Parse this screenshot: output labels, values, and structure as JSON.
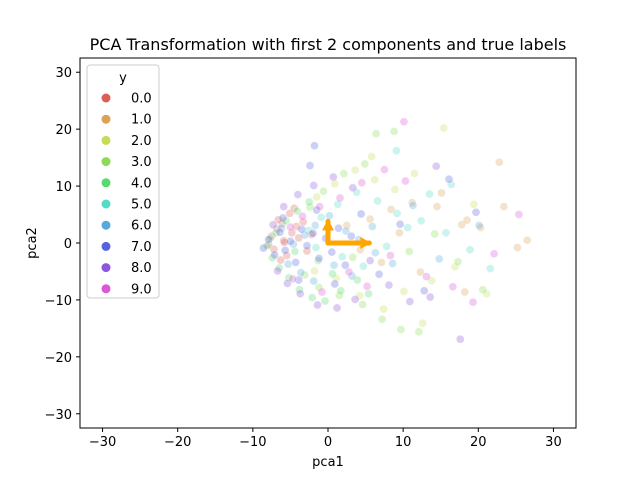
{
  "chart_data": {
    "type": "scatter",
    "title": "PCA Transformation with first 2 components and true labels",
    "xlabel": "pca1",
    "ylabel": "pca2",
    "xlim": [
      -33,
      33
    ],
    "ylim": [
      -32.5,
      32.5
    ],
    "xticks": [
      -30,
      -20,
      -10,
      0,
      10,
      20,
      30
    ],
    "xtick_labels": [
      "−30",
      "−20",
      "−10",
      "0",
      "10",
      "20",
      "30"
    ],
    "yticks": [
      -30,
      -20,
      -10,
      0,
      10,
      20,
      30
    ],
    "ytick_labels": [
      "−30",
      "−20",
      "−10",
      "0",
      "10",
      "20",
      "30"
    ],
    "grid": false,
    "legend": {
      "title": "y",
      "placement": "top-left",
      "entries": [
        "0.0",
        "1.0",
        "2.0",
        "3.0",
        "4.0",
        "5.0",
        "6.0",
        "7.0",
        "8.0",
        "9.0"
      ]
    },
    "series_colors": [
      "#db5f57",
      "#dba157",
      "#c8db57",
      "#8adb57",
      "#57db6c",
      "#57dbc8",
      "#57a9db",
      "#5763db",
      "#8c57db",
      "#db57d6"
    ],
    "point_alpha": 0.3,
    "series": [
      {
        "name": "0.0",
        "points": [
          [
            -7.5,
            1.2
          ],
          [
            -6.8,
            2.5
          ],
          [
            -5.9,
            0.4
          ],
          [
            -7.2,
            -1.1
          ],
          [
            -6.1,
            3.4
          ],
          [
            -4.8,
            1.8
          ],
          [
            -5.5,
            -2.2
          ],
          [
            -3.9,
            0.9
          ],
          [
            -6.6,
            4.1
          ],
          [
            -4.2,
            2.9
          ],
          [
            -7.9,
            -0.3
          ],
          [
            -5.1,
            5.2
          ],
          [
            -3.3,
            3.7
          ],
          [
            -2.8,
            -1.4
          ],
          [
            -6.3,
            -3.0
          ],
          [
            -4.5,
            6.1
          ],
          [
            -2.2,
            1.5
          ],
          [
            -5.8,
            0.1
          ]
        ]
      },
      {
        "name": "1.0",
        "points": [
          [
            2.5,
            3.1
          ],
          [
            5.6,
            4.2
          ],
          [
            8.4,
            5.9
          ],
          [
            11.2,
            7.1
          ],
          [
            14.5,
            6.4
          ],
          [
            17.8,
            3.2
          ],
          [
            18.5,
            4.0
          ],
          [
            22.8,
            14.2
          ],
          [
            23.4,
            6.4
          ],
          [
            25.2,
            -0.8
          ],
          [
            26.5,
            0.5
          ],
          [
            7.1,
            -3.4
          ],
          [
            12.3,
            -5.1
          ],
          [
            18.2,
            -8.6
          ],
          [
            9.5,
            1.8
          ],
          [
            15.1,
            8.8
          ],
          [
            4.3,
            -1.2
          ],
          [
            20.3,
            2.7
          ]
        ]
      },
      {
        "name": "2.0",
        "points": [
          [
            -1.5,
            8.1
          ],
          [
            0.9,
            10.4
          ],
          [
            3.6,
            12.8
          ],
          [
            6.2,
            11.1
          ],
          [
            8.9,
            9.4
          ],
          [
            11.5,
            12.2
          ],
          [
            15.4,
            20.2
          ],
          [
            13.8,
            -6.6
          ],
          [
            16.9,
            -4.2
          ],
          [
            10.1,
            -8.5
          ],
          [
            7.4,
            -11.6
          ],
          [
            4.2,
            -9.3
          ],
          [
            1.1,
            -6.2
          ],
          [
            -1.8,
            -4.9
          ],
          [
            21.1,
            -8.9
          ],
          [
            12.6,
            -14.1
          ],
          [
            5.8,
            15.2
          ],
          [
            19.4,
            6.8
          ]
        ]
      },
      {
        "name": "3.0",
        "points": [
          [
            -3.1,
            -5.6
          ],
          [
            -1.2,
            -7.8
          ],
          [
            1.5,
            -9.2
          ],
          [
            4.6,
            -10.8
          ],
          [
            7.2,
            -13.4
          ],
          [
            9.7,
            -15.2
          ],
          [
            12.1,
            -15.6
          ],
          [
            6.4,
            19.2
          ],
          [
            8.8,
            19.6
          ],
          [
            4.9,
            13.9
          ],
          [
            2.1,
            12.2
          ],
          [
            -0.6,
            9.1
          ],
          [
            -2.4,
            6.3
          ],
          [
            10.8,
            -1.5
          ],
          [
            14.2,
            1.6
          ],
          [
            20.6,
            -8.2
          ],
          [
            17.3,
            -3.3
          ],
          [
            3.3,
            -2.5
          ]
        ]
      },
      {
        "name": "4.0",
        "points": [
          [
            -8.1,
            -0.5
          ],
          [
            -7.4,
            -2.6
          ],
          [
            -6.5,
            -4.4
          ],
          [
            -5.2,
            -6.1
          ],
          [
            -3.8,
            -8.2
          ],
          [
            -2.1,
            -9.6
          ],
          [
            -0.4,
            -10.2
          ],
          [
            1.7,
            -8.4
          ],
          [
            -6.9,
            1.8
          ],
          [
            -5.6,
            3.9
          ],
          [
            -4.1,
            5.6
          ],
          [
            -2.5,
            7.2
          ],
          [
            3.9,
            -6.5
          ],
          [
            -1.3,
            -3.1
          ],
          [
            0.6,
            -5.4
          ],
          [
            5.4,
            -8.9
          ],
          [
            -7.7,
            0.8
          ],
          [
            -4.4,
            -1.5
          ]
        ]
      },
      {
        "name": "5.0",
        "points": [
          [
            -2.6,
            2.2
          ],
          [
            -0.9,
            4.5
          ],
          [
            1.3,
            6.8
          ],
          [
            3.8,
            8.9
          ],
          [
            6.6,
            7.4
          ],
          [
            9.2,
            5.2
          ],
          [
            12.4,
            3.9
          ],
          [
            15.7,
            1.8
          ],
          [
            18.9,
            -1.2
          ],
          [
            21.6,
            -4.5
          ],
          [
            -1.6,
            -0.8
          ],
          [
            1.9,
            -2.4
          ],
          [
            4.7,
            -4.1
          ],
          [
            7.8,
            -0.6
          ],
          [
            10.6,
            2.7
          ],
          [
            13.5,
            8.6
          ],
          [
            16.4,
            10.3
          ],
          [
            9.1,
            16.2
          ]
        ]
      },
      {
        "name": "6.0",
        "points": [
          [
            -4.6,
            -0.2
          ],
          [
            -3.1,
            1.4
          ],
          [
            -1.7,
            3.1
          ],
          [
            0.2,
            4.8
          ],
          [
            2.4,
            2.1
          ],
          [
            4.1,
            0.6
          ],
          [
            6.3,
            -1.7
          ],
          [
            8.6,
            -3.6
          ],
          [
            -5.3,
            -3.7
          ],
          [
            -3.6,
            -5.2
          ],
          [
            -1.9,
            -6.7
          ],
          [
            0.8,
            -3.9
          ],
          [
            3.2,
            -5.8
          ],
          [
            5.9,
            2.9
          ],
          [
            11.3,
            6.6
          ],
          [
            14.8,
            -2.8
          ],
          [
            20.1,
            3.1
          ],
          [
            -6.2,
            2.6
          ]
        ]
      },
      {
        "name": "7.0",
        "points": [
          [
            -8.6,
            -0.9
          ],
          [
            -7.9,
            0.6
          ],
          [
            -7.1,
            -2.1
          ],
          [
            -6.4,
            1.9
          ],
          [
            -5.7,
            -1.3
          ],
          [
            -5.0,
            0.3
          ],
          [
            -4.3,
            -3.4
          ],
          [
            -3.5,
            2.4
          ],
          [
            -2.8,
            -0.5
          ],
          [
            -2.0,
            1.7
          ],
          [
            -1.2,
            -2.7
          ],
          [
            -0.3,
            0.8
          ],
          [
            0.5,
            -1.6
          ],
          [
            1.4,
            2.6
          ],
          [
            2.3,
            -3.9
          ],
          [
            3.1,
            1.2
          ],
          [
            -6.0,
            4.4
          ],
          [
            -3.9,
            -6.5
          ],
          [
            -1.5,
            5.8
          ],
          [
            0.9,
            -7.2
          ],
          [
            4.4,
            5.1
          ],
          [
            6.8,
            -5.5
          ],
          [
            9.6,
            3.3
          ],
          [
            12.8,
            -8.4
          ],
          [
            16.1,
            11.2
          ],
          [
            19.7,
            5.4
          ],
          [
            -2.4,
            13.6
          ],
          [
            -1.8,
            17.1
          ]
        ]
      },
      {
        "name": "8.0",
        "points": [
          [
            -6.7,
            -4.9
          ],
          [
            -5.4,
            -7.1
          ],
          [
            -3.7,
            -8.9
          ],
          [
            -1.4,
            -10.9
          ],
          [
            1.2,
            -11.4
          ],
          [
            3.6,
            -9.9
          ],
          [
            -7.3,
            3.2
          ],
          [
            -5.9,
            6.4
          ],
          [
            -4.0,
            8.5
          ],
          [
            -1.9,
            10.1
          ],
          [
            0.7,
            11.6
          ],
          [
            3.3,
            9.7
          ],
          [
            5.6,
            -3.1
          ],
          [
            8.1,
            -7.4
          ],
          [
            10.9,
            -10.3
          ],
          [
            13.6,
            -9.5
          ],
          [
            17.6,
            -16.9
          ],
          [
            14.4,
            13.5
          ]
        ]
      },
      {
        "name": "9.0",
        "points": [
          [
            -5.0,
            2.8
          ],
          [
            -3.4,
            4.7
          ],
          [
            -1.1,
            6.4
          ],
          [
            1.6,
            7.9
          ],
          [
            4.5,
            10.6
          ],
          [
            7.5,
            12.9
          ],
          [
            10.3,
            10.9
          ],
          [
            10.1,
            21.3
          ],
          [
            13.1,
            -5.9
          ],
          [
            16.6,
            -7.7
          ],
          [
            19.3,
            -10.4
          ],
          [
            8.3,
            -2.2
          ],
          [
            5.2,
            -7.6
          ],
          [
            2.8,
            -5.1
          ],
          [
            -0.8,
            -8.6
          ],
          [
            -4.7,
            -6.3
          ],
          [
            22.1,
            -1.9
          ],
          [
            25.4,
            5.0
          ]
        ]
      }
    ],
    "arrows": [
      {
        "from": [
          0,
          0
        ],
        "to": [
          5.5,
          0
        ],
        "color": "#ffa500"
      },
      {
        "from": [
          0,
          0
        ],
        "to": [
          0,
          3.8
        ],
        "color": "#ffa500"
      }
    ]
  }
}
